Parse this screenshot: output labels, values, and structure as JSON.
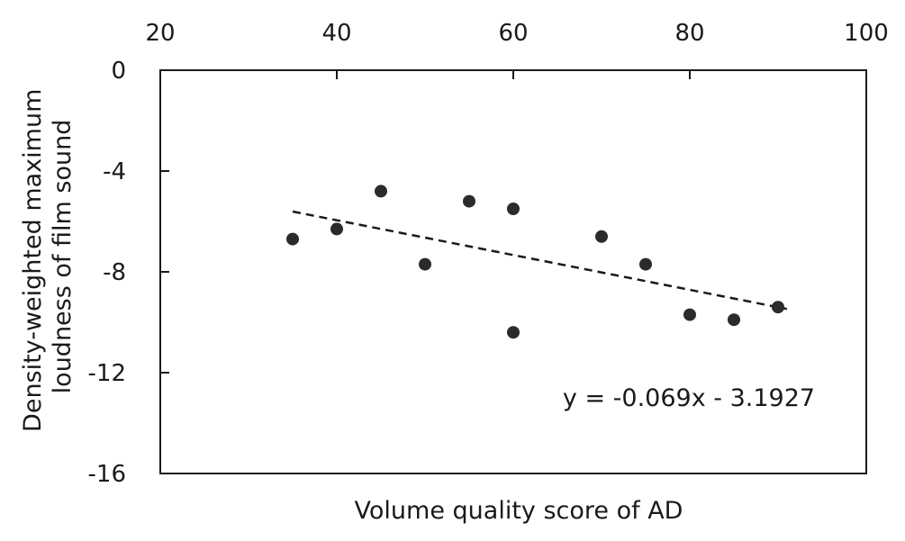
{
  "chart_data": {
    "type": "scatter",
    "xlabel": "Volume quality score of AD",
    "ylabel": [
      "Density-weighted maximum",
      "loudness of film sound"
    ],
    "xlim": [
      20,
      100
    ],
    "ylim": [
      -16,
      0
    ],
    "x_ticks": [
      20,
      40,
      60,
      80,
      100
    ],
    "y_ticks": [
      0,
      -4,
      -8,
      -12,
      -16
    ],
    "x_axis_position": "top",
    "grid": false,
    "legend": "none",
    "series": [
      {
        "points": [
          {
            "x": 35,
            "y": -6.7
          },
          {
            "x": 40,
            "y": -6.3
          },
          {
            "x": 45,
            "y": -4.8
          },
          {
            "x": 50,
            "y": -7.7
          },
          {
            "x": 55,
            "y": -5.2
          },
          {
            "x": 60,
            "y": -5.5
          },
          {
            "x": 60,
            "y": -10.4
          },
          {
            "x": 70,
            "y": -6.6
          },
          {
            "x": 75,
            "y": -7.7
          },
          {
            "x": 80,
            "y": -9.7
          },
          {
            "x": 85,
            "y": -9.9
          },
          {
            "x": 90,
            "y": -9.4
          }
        ]
      }
    ],
    "trendline": {
      "slope": -0.069,
      "intercept": -3.1927,
      "x_range": [
        35,
        91
      ],
      "style": "dashed",
      "equation_label": "y = -0.069x - 3.1927"
    },
    "colors": {
      "marker": "#2b2b2b",
      "axis": "#1a1a1a",
      "trendline": "#1a1a1a"
    }
  }
}
